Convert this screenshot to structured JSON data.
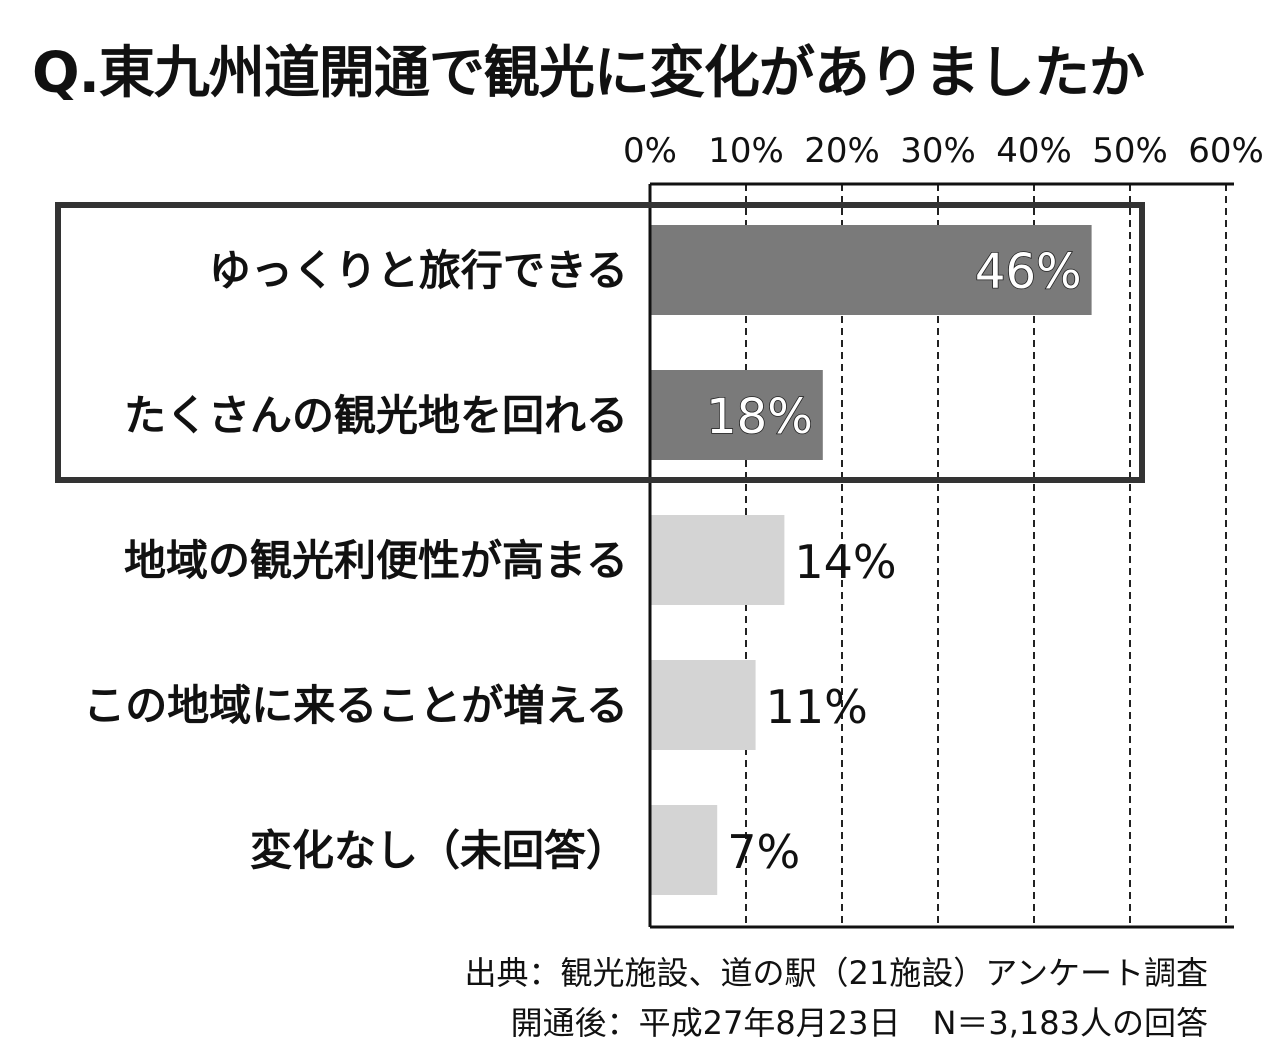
{
  "title": "Q.東九州道開通で観光に変化がありましたか",
  "chart_data": {
    "type": "bar",
    "orientation": "horizontal",
    "categories": [
      "ゆっくりと旅行できる",
      "たくさんの観光地を回れる",
      "地域の観光利便性が高まる",
      "この地域に来ることが増える",
      "変化なし（未回答）"
    ],
    "values": [
      46,
      18,
      14,
      11,
      7
    ],
    "value_labels": [
      "46%",
      "18%",
      "14%",
      "11%",
      "7%"
    ],
    "xlim": [
      0,
      60
    ],
    "ticks": [
      "0%",
      "10%",
      "20%",
      "30%",
      "40%",
      "50%",
      "60%"
    ],
    "axis_position": "top",
    "grid": "dashed vertical",
    "highlighted_categories": [
      0,
      1
    ],
    "colors": {
      "highlight": "#7a7a7a",
      "normal": "#d4d4d4",
      "axis": "#111111"
    }
  },
  "source": {
    "line1": "出典：観光施設、道の駅（21施設）アンケート調査",
    "line2": "開通後：平成27年8月23日　N＝3,183人の回答"
  }
}
